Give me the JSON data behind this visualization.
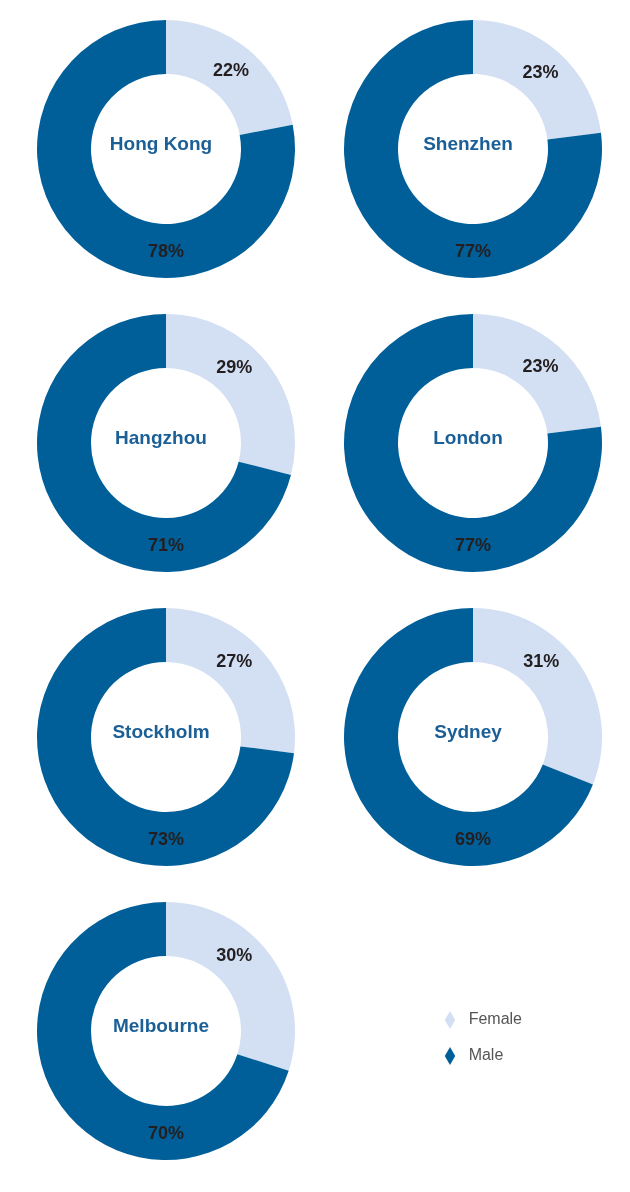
{
  "chart_data": [
    {
      "type": "donut",
      "title": "Hong Kong",
      "categories": [
        null,
        null
      ],
      "values": [
        22,
        78
      ],
      "value_labels": [
        "22%",
        "78%"
      ],
      "colors": [
        "#d3dff2",
        "#005f99"
      ],
      "legend": false
    },
    {
      "type": "donut",
      "title": "Shenzhen",
      "categories": [
        null,
        null
      ],
      "values": [
        23,
        77
      ],
      "value_labels": [
        "23%",
        "77%"
      ],
      "colors": [
        "#d3dff2",
        "#005f99"
      ],
      "legend": false
    },
    {
      "type": "donut",
      "title": "Hangzhou",
      "categories": [
        null,
        null
      ],
      "values": [
        29,
        71
      ],
      "value_labels": [
        "29%",
        "71%"
      ],
      "colors": [
        "#d3dff2",
        "#005f99"
      ],
      "legend": false
    },
    {
      "type": "donut",
      "title": "London",
      "categories": [
        null,
        null
      ],
      "values": [
        23,
        77
      ],
      "value_labels": [
        "23%",
        "77%"
      ],
      "colors": [
        "#d3dff2",
        "#005f99"
      ],
      "legend": false
    },
    {
      "type": "donut",
      "title": "Stockholm",
      "categories": [
        null,
        null
      ],
      "values": [
        27,
        73
      ],
      "value_labels": [
        "27%",
        "73%"
      ],
      "colors": [
        "#d3dff2",
        "#005f99"
      ],
      "legend": false
    },
    {
      "type": "donut",
      "title": "Sydney",
      "categories": [
        null,
        null
      ],
      "values": [
        31,
        69
      ],
      "value_labels": [
        "31%",
        "69%"
      ],
      "colors": [
        "#d3dff2",
        "#005f99"
      ],
      "legend": false
    },
    {
      "type": "donut",
      "title": "Melbourne",
      "categories": [
        "Female",
        "Male"
      ],
      "values": [
        30,
        70
      ],
      "value_labels": [
        "30%",
        "70%"
      ],
      "colors": [
        "#d3dff2",
        "#005f99"
      ],
      "legend": "right"
    }
  ]
}
